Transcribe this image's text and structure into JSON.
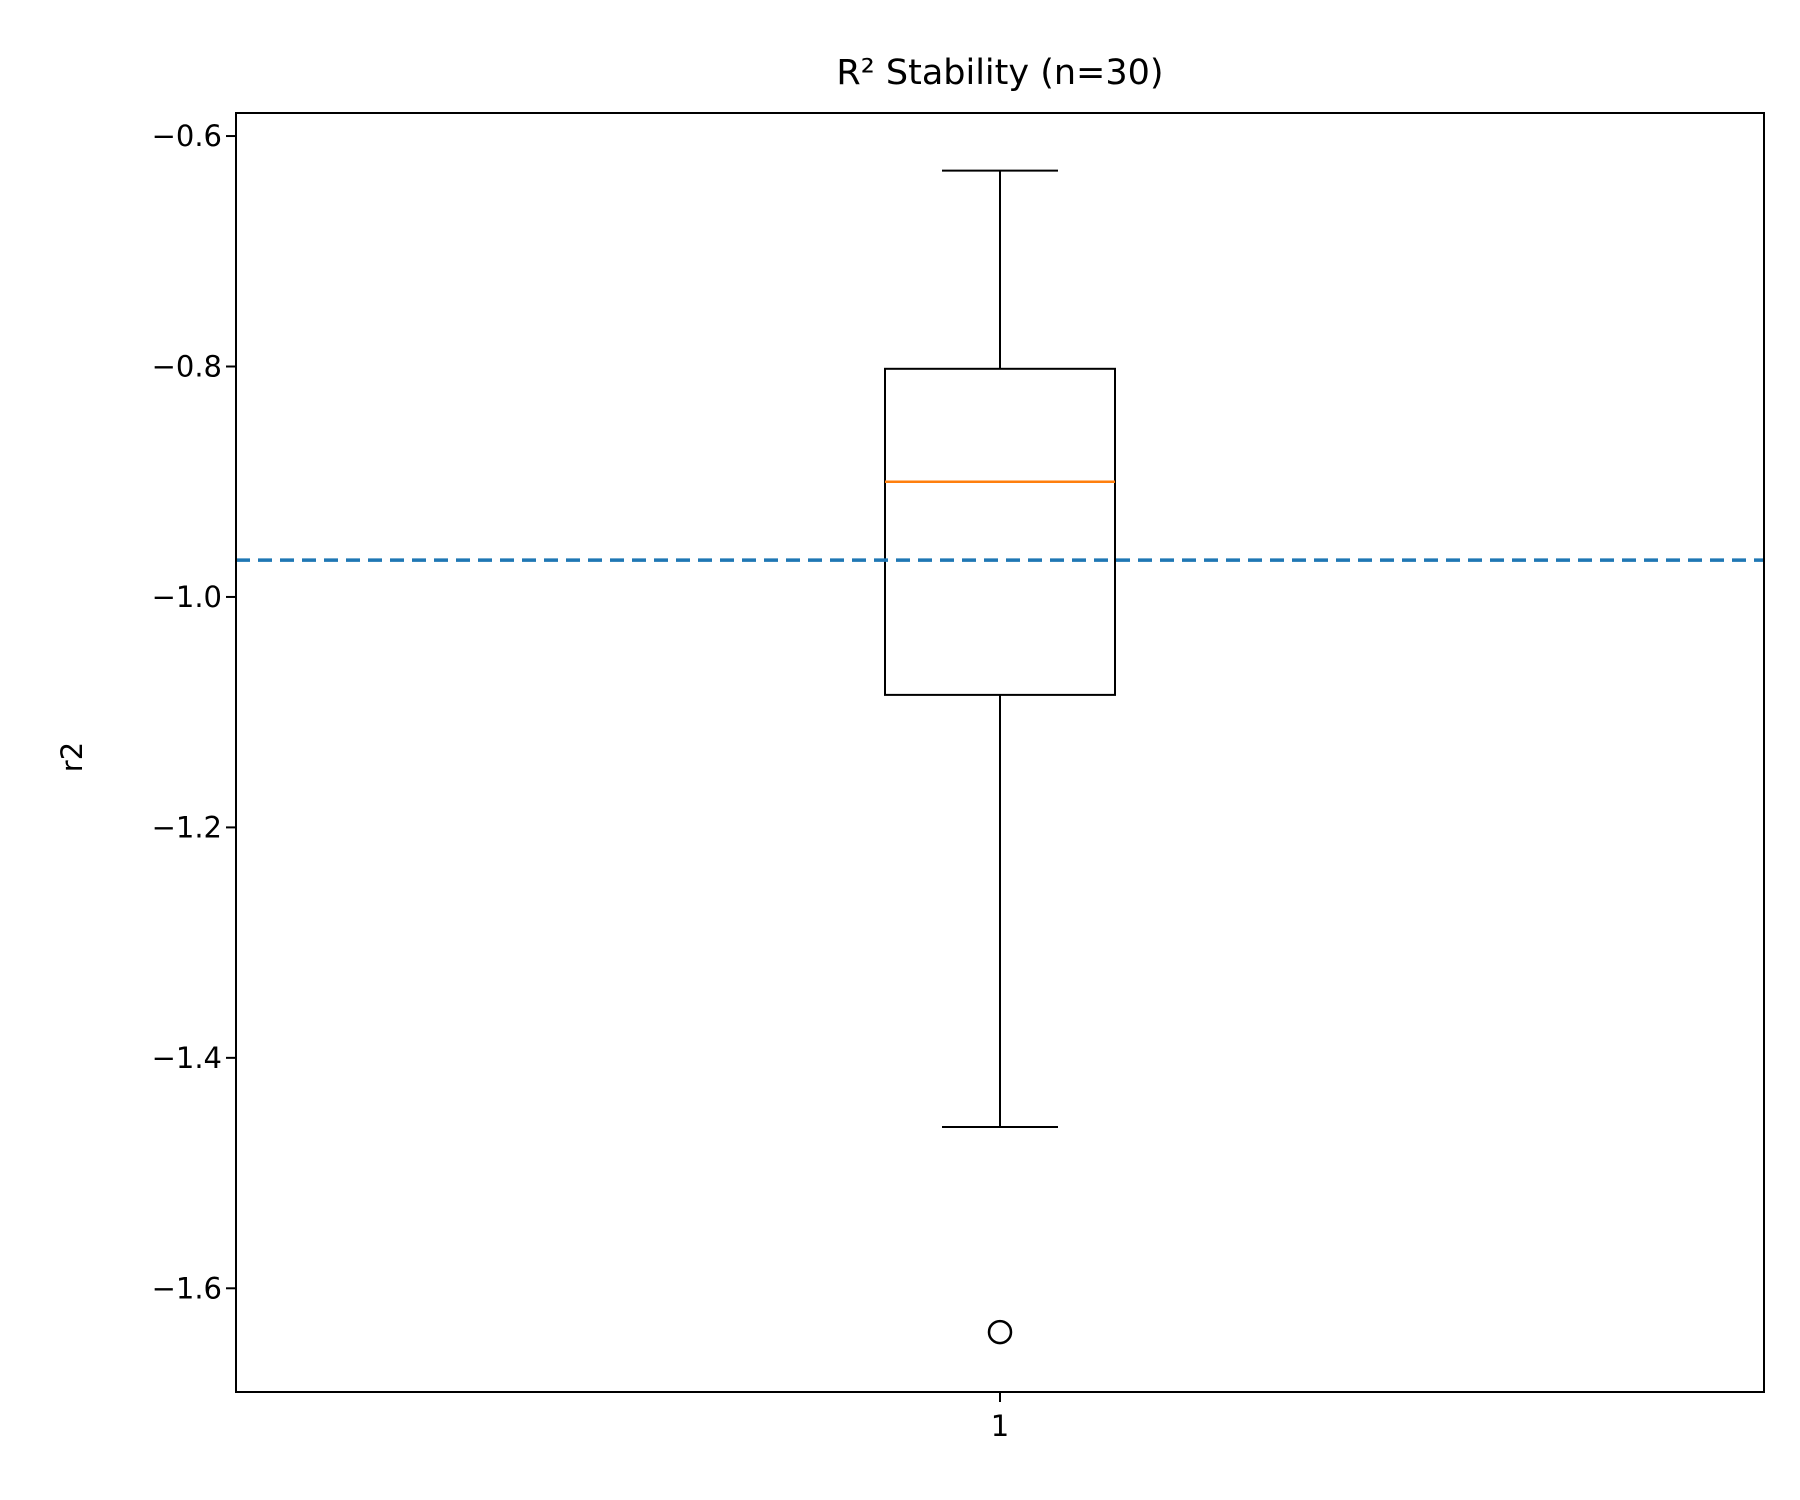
{
  "chart_data": {
    "type": "box",
    "title": "R² Stability (n=30)",
    "xlabel": "",
    "ylabel": "r2",
    "ylim": [
      -1.69,
      -0.58
    ],
    "yticks": [
      -0.6,
      -0.8,
      -1.0,
      -1.2,
      -1.4,
      -1.6
    ],
    "ytick_labels": [
      "−0.6",
      "−0.8",
      "−1.0",
      "−1.2",
      "−1.4",
      "−1.6"
    ],
    "xticks": [
      "1"
    ],
    "boxes": [
      {
        "category": "1",
        "whisker_high": -0.63,
        "q3": -0.802,
        "median": -0.9,
        "q1": -1.085,
        "whisker_low": -1.46,
        "outliers": [
          -1.638
        ]
      }
    ],
    "reference_line": {
      "value": -0.968,
      "style": "dashed",
      "color": "#1f77b4"
    },
    "colors": {
      "median": "#ff7f0e",
      "box": "#000000",
      "reference": "#1f77b4"
    },
    "grid": false,
    "legend": "none"
  }
}
